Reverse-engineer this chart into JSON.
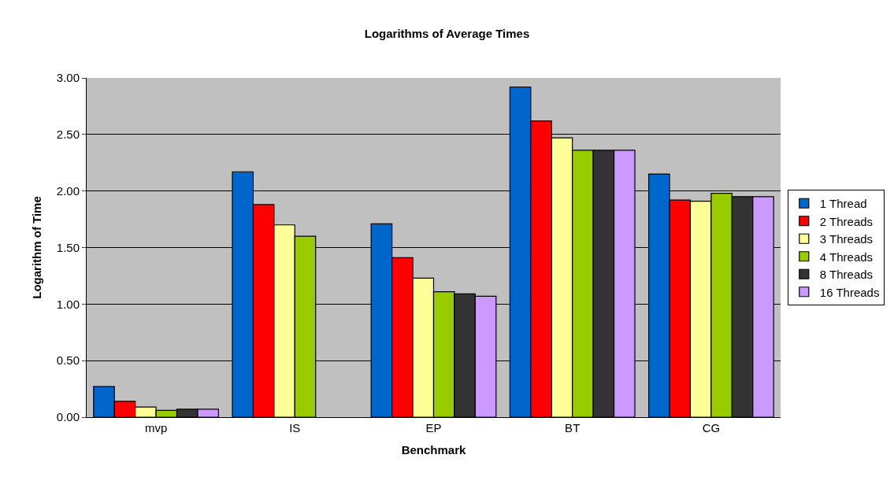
{
  "chart_data": {
    "type": "bar",
    "title": "Logarithms of Average Times",
    "xlabel": "Benchmark",
    "ylabel": "Logarithm of Time",
    "categories": [
      "mvp",
      "IS",
      "EP",
      "BT",
      "CG"
    ],
    "series": [
      {
        "name": "1 Thread",
        "color": "#0066cc",
        "values": [
          0.27,
          2.17,
          1.71,
          2.92,
          2.15
        ]
      },
      {
        "name": "2 Threads",
        "color": "#ff0000",
        "values": [
          0.14,
          1.88,
          1.41,
          2.62,
          1.92
        ]
      },
      {
        "name": "3 Threads",
        "color": "#ffff99",
        "values": [
          0.09,
          1.7,
          1.23,
          2.47,
          1.91
        ]
      },
      {
        "name": "4 Threads",
        "color": "#99cc00",
        "values": [
          0.06,
          1.6,
          1.11,
          2.36,
          1.98
        ]
      },
      {
        "name": "8 Threads",
        "color": "#333333",
        "values": [
          0.07,
          null,
          1.09,
          2.36,
          1.95
        ]
      },
      {
        "name": "16 Threads",
        "color": "#cc99ff",
        "values": [
          0.07,
          null,
          1.07,
          2.36,
          1.95
        ]
      }
    ],
    "ylim": [
      0,
      3
    ],
    "yticks": [
      {
        "value": 0,
        "label": "0.00"
      },
      {
        "value": 0.5,
        "label": "0.50"
      },
      {
        "value": 1,
        "label": "1.00"
      },
      {
        "value": 1.5,
        "label": "1.50"
      },
      {
        "value": 2,
        "label": "2.00"
      },
      {
        "value": 2.5,
        "label": "2.50"
      },
      {
        "value": 3,
        "label": "3.00"
      }
    ],
    "grid": "y",
    "legend": "right"
  }
}
